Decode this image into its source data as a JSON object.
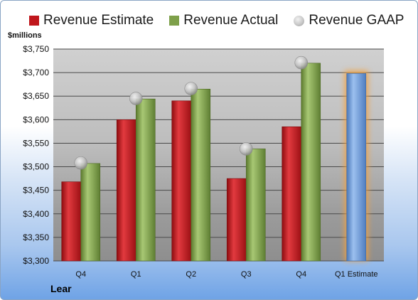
{
  "chart_data": {
    "type": "bar",
    "categories": [
      "Q4",
      "Q1",
      "Q2",
      "Q3",
      "Q4",
      "Q1 Estimate"
    ],
    "series": [
      {
        "name": "Revenue Estimate",
        "values": [
          3468,
          3600,
          3640,
          3475,
          3585,
          null
        ]
      },
      {
        "name": "Revenue Actual",
        "values": [
          3507,
          3644,
          3665,
          3538,
          3720,
          3698
        ]
      },
      {
        "name": "Revenue GAAP",
        "values": [
          3508,
          3645,
          3666,
          3538,
          3721,
          null
        ]
      }
    ],
    "highlighted_category": "Q1 Estimate",
    "ylabel": "$millions",
    "ylim": [
      3300,
      3750
    ],
    "yticks": [
      "$3,300",
      "$3,350",
      "$3,400",
      "$3,450",
      "$3,500",
      "$3,550",
      "$3,600",
      "$3,650",
      "$3,700",
      "$3,750"
    ],
    "grid": true,
    "legend": "top"
  },
  "company": "Lear",
  "colors": {
    "estimate": "#c0171c",
    "actual": "#7ea04a",
    "gaap": "#b8b8b8",
    "forecast": "#6e9bd8",
    "forecast_glow": "#f4a13e"
  }
}
